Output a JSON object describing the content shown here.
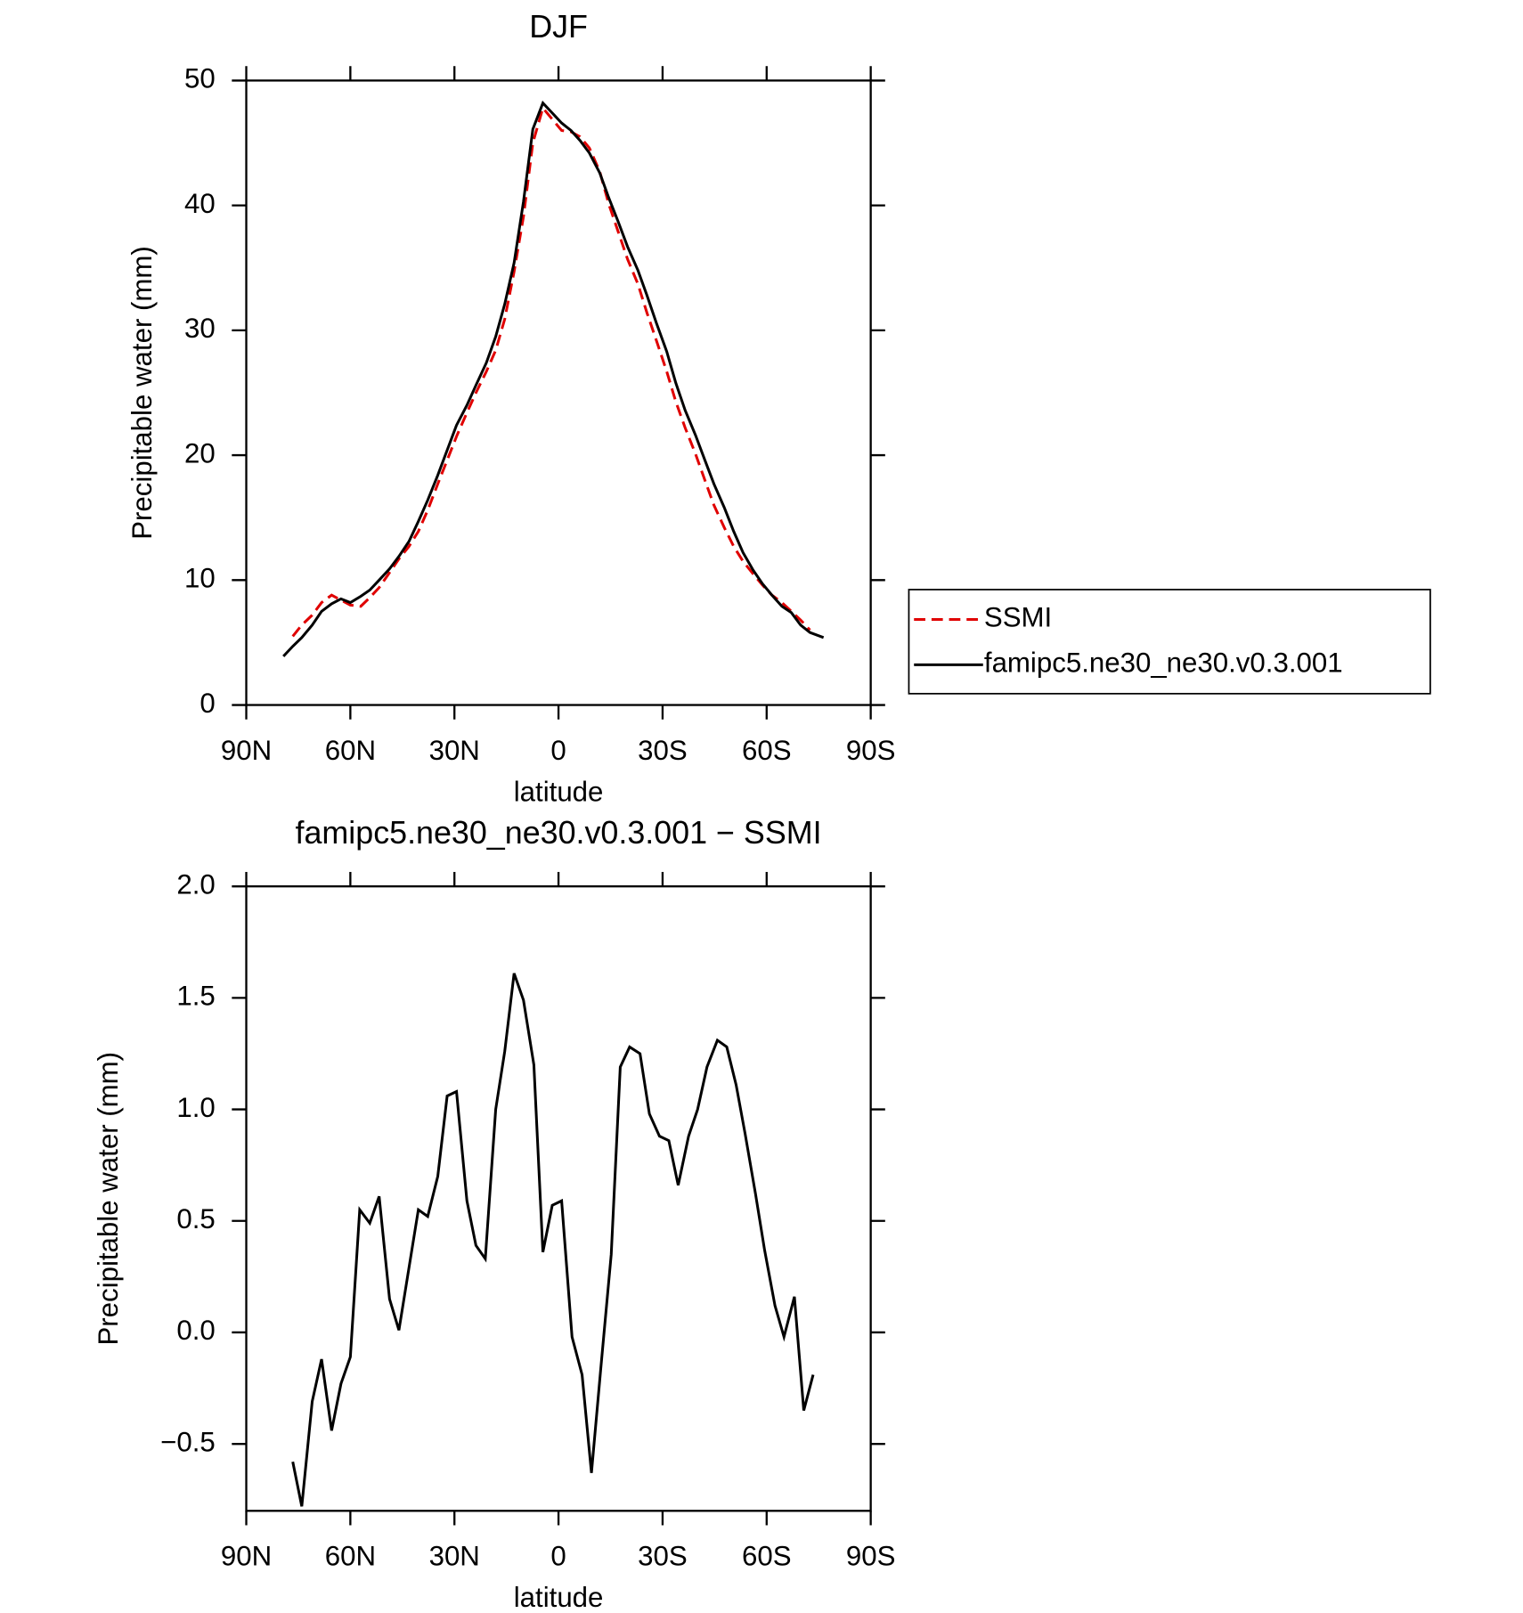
{
  "chart_data": [
    {
      "type": "line",
      "title": "DJF",
      "xlabel": "latitude",
      "ylabel": "Precipitable water (mm)",
      "xlim": [
        90,
        -90
      ],
      "xticks": [
        {
          "value": 90,
          "label": "90N"
        },
        {
          "value": 60,
          "label": "60N"
        },
        {
          "value": 30,
          "label": "30N"
        },
        0,
        {
          "value": -30,
          "label": "30S"
        },
        {
          "value": -60,
          "label": "60S"
        },
        {
          "value": -90,
          "label": "90S"
        }
      ],
      "ylim": [
        0,
        50
      ],
      "yticks": [
        0,
        10,
        20,
        30,
        40,
        50
      ],
      "legend": "right",
      "x": [
        79.3,
        76.6,
        74.0,
        71.0,
        68.3,
        65.4,
        62.7,
        60.0,
        57.0,
        54.4,
        51.7,
        48.7,
        46.0,
        43.1,
        40.4,
        37.7,
        34.8,
        32.1,
        29.4,
        26.4,
        23.8,
        20.8,
        18.1,
        15.5,
        12.8,
        10.1,
        7.4,
        4.5,
        1.8,
        -0.9,
        -3.6,
        -6.2,
        -8.9,
        -11.9,
        -14.5,
        -17.2,
        -19.9,
        -22.9,
        -25.5,
        -28.2,
        -31.2,
        -33.8,
        -36.5,
        -39.5,
        -42.2,
        -44.8,
        -47.8,
        -50.5,
        -53.2,
        -56.1,
        -58.8,
        -61.5,
        -64.4,
        -67.1,
        -69.8,
        -72.5,
        -76.4
      ],
      "series": [
        {
          "name": "SSMI",
          "color": "#e00000",
          "dash": true,
          "values": [
            null,
            5.5,
            6.4,
            7.2,
            8.2,
            8.8,
            8.4,
            8.0,
            7.9,
            8.6,
            9.4,
            10.6,
            11.7,
            12.7,
            13.9,
            15.6,
            17.7,
            19.6,
            21.5,
            23.4,
            25.0,
            26.7,
            28.4,
            30.9,
            34.7,
            39.1,
            45.0,
            47.8,
            46.9,
            46.0,
            45.9,
            45.5,
            44.6,
            42.7,
            40.1,
            37.9,
            35.7,
            33.7,
            31.4,
            29.2,
            26.7,
            24.3,
            22.2,
            20.1,
            18.0,
            16.0,
            14.2,
            12.7,
            11.5,
            10.5,
            9.6,
            8.8,
            8.2,
            7.5,
            6.8,
            6.0,
            null
          ]
        },
        {
          "name": "famipc5.ne30_ne30.v0.3.001",
          "color": "#000000",
          "dash": false,
          "values": [
            3.9,
            4.7,
            5.4,
            6.4,
            7.5,
            8.1,
            8.5,
            8.2,
            8.7,
            9.2,
            10.0,
            10.9,
            11.9,
            13.1,
            14.7,
            16.4,
            18.4,
            20.4,
            22.4,
            24.0,
            25.6,
            27.4,
            29.5,
            32.1,
            35.4,
            40.3,
            46.1,
            48.2,
            47.4,
            46.6,
            46.0,
            45.2,
            44.2,
            42.6,
            40.6,
            38.7,
            36.7,
            34.8,
            32.8,
            30.6,
            28.3,
            25.8,
            23.6,
            21.6,
            19.6,
            17.7,
            15.8,
            13.9,
            12.2,
            10.8,
            9.7,
            8.8,
            7.9,
            7.4,
            6.4,
            5.8,
            5.4
          ]
        }
      ]
    },
    {
      "type": "line",
      "title": "famipc5.ne30_ne30.v0.3.001 − SSMI",
      "xlabel": "latitude",
      "ylabel": "Precipitable water (mm)",
      "xlim": [
        90,
        -90
      ],
      "xticks": [
        {
          "value": 90,
          "label": "90N"
        },
        {
          "value": 60,
          "label": "60N"
        },
        {
          "value": 30,
          "label": "30N"
        },
        0,
        {
          "value": -30,
          "label": "30S"
        },
        {
          "value": -60,
          "label": "60S"
        },
        {
          "value": -90,
          "label": "90S"
        }
      ],
      "ylim": [
        -0.8,
        2.0
      ],
      "yticks": [
        {
          "value": -0.5,
          "label": "−0.5"
        },
        {
          "value": 0,
          "label": "0.0"
        },
        0.5,
        {
          "value": 1,
          "label": "1.0"
        },
        1.5,
        {
          "value": 2,
          "label": "2.0"
        }
      ],
      "x": [
        76.6,
        74.0,
        71.0,
        68.3,
        65.4,
        62.7,
        60.0,
        57.3,
        54.4,
        51.7,
        48.7,
        46.0,
        43.1,
        40.4,
        37.7,
        34.8,
        32.1,
        29.4,
        26.4,
        23.8,
        21.1,
        18.1,
        15.5,
        12.8,
        10.1,
        7.1,
        4.5,
        1.8,
        -0.9,
        -3.9,
        -6.8,
        -9.5,
        -12.2,
        -15.2,
        -17.8,
        -20.5,
        -23.5,
        -26.2,
        -29.1,
        -31.8,
        -34.5,
        -37.5,
        -40.1,
        -42.8,
        -45.8,
        -48.5,
        -51.2,
        -53.8,
        -56.8,
        -59.4,
        -62.4,
        -65.0,
        -68.0,
        -70.7,
        -73.4
      ],
      "series": [
        {
          "color": "#000000",
          "dash": false,
          "values": [
            -0.58,
            -0.78,
            -0.31,
            -0.12,
            -0.44,
            -0.23,
            -0.11,
            0.55,
            0.49,
            0.61,
            0.15,
            0.01,
            0.29,
            0.55,
            0.52,
            0.7,
            1.06,
            1.08,
            0.59,
            0.39,
            0.33,
            1.0,
            1.26,
            1.61,
            1.49,
            1.2,
            0.36,
            0.57,
            0.59,
            -0.02,
            -0.19,
            -0.63,
            -0.16,
            0.35,
            1.19,
            1.28,
            1.25,
            0.98,
            0.88,
            0.86,
            0.66,
            0.88,
            1.0,
            1.19,
            1.31,
            1.28,
            1.11,
            0.89,
            0.62,
            0.37,
            0.12,
            -0.02,
            0.16,
            -0.35,
            -0.19
          ]
        }
      ]
    }
  ]
}
